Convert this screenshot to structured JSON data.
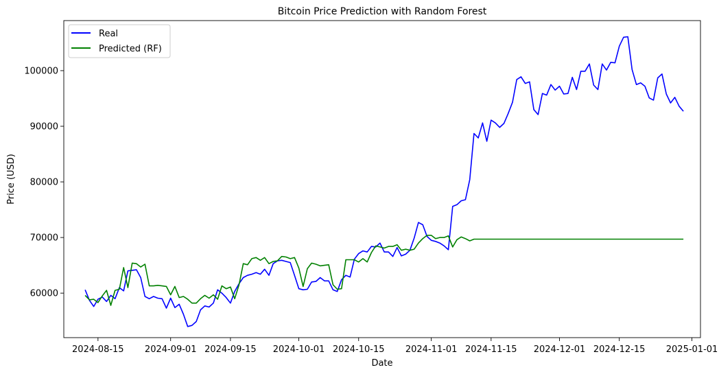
{
  "chart_data": {
    "type": "line",
    "title": "Bitcoin Price Prediction with Random Forest",
    "xlabel": "Date",
    "ylabel": "Price (USD)",
    "x_ticks": [
      "2024-08-15",
      "2024-09-01",
      "2024-09-15",
      "2024-10-01",
      "2024-10-15",
      "2024-11-01",
      "2024-11-15",
      "2024-12-01",
      "2024-12-15",
      "2025-01-01"
    ],
    "y_ticks": [
      60000,
      70000,
      80000,
      90000,
      100000
    ],
    "xlim": [
      "2024-08-07",
      "2025-01-03"
    ],
    "ylim": [
      52000,
      109000
    ],
    "legend_position": "top-left",
    "grid": false,
    "x": [
      "2024-08-12",
      "2024-08-13",
      "2024-08-14",
      "2024-08-15",
      "2024-08-16",
      "2024-08-17",
      "2024-08-18",
      "2024-08-19",
      "2024-08-20",
      "2024-08-21",
      "2024-08-22",
      "2024-08-23",
      "2024-08-24",
      "2024-08-25",
      "2024-08-26",
      "2024-08-27",
      "2024-08-28",
      "2024-08-29",
      "2024-08-30",
      "2024-08-31",
      "2024-09-01",
      "2024-09-02",
      "2024-09-03",
      "2024-09-04",
      "2024-09-05",
      "2024-09-06",
      "2024-09-07",
      "2024-09-08",
      "2024-09-09",
      "2024-09-10",
      "2024-09-11",
      "2024-09-12",
      "2024-09-13",
      "2024-09-14",
      "2024-09-15",
      "2024-09-16",
      "2024-09-17",
      "2024-09-18",
      "2024-09-19",
      "2024-09-20",
      "2024-09-21",
      "2024-09-22",
      "2024-09-23",
      "2024-09-24",
      "2024-09-25",
      "2024-09-26",
      "2024-09-27",
      "2024-09-28",
      "2024-09-29",
      "2024-09-30",
      "2024-10-01",
      "2024-10-02",
      "2024-10-03",
      "2024-10-04",
      "2024-10-05",
      "2024-10-06",
      "2024-10-07",
      "2024-10-08",
      "2024-10-09",
      "2024-10-10",
      "2024-10-11",
      "2024-10-12",
      "2024-10-13",
      "2024-10-14",
      "2024-10-15",
      "2024-10-16",
      "2024-10-17",
      "2024-10-18",
      "2024-10-19",
      "2024-10-20",
      "2024-10-21",
      "2024-10-22",
      "2024-10-23",
      "2024-10-24",
      "2024-10-25",
      "2024-10-26",
      "2024-10-27",
      "2024-10-28",
      "2024-10-29",
      "2024-10-30",
      "2024-10-31",
      "2024-11-01",
      "2024-11-02",
      "2024-11-03",
      "2024-11-04",
      "2024-11-05",
      "2024-11-06",
      "2024-11-07",
      "2024-11-08",
      "2024-11-09",
      "2024-11-10",
      "2024-11-11",
      "2024-11-12",
      "2024-11-13",
      "2024-11-14",
      "2024-11-15",
      "2024-11-16",
      "2024-11-17",
      "2024-11-18",
      "2024-11-19",
      "2024-11-20",
      "2024-11-21",
      "2024-11-22",
      "2024-11-23",
      "2024-11-24",
      "2024-11-25",
      "2024-11-26",
      "2024-11-27",
      "2024-11-28",
      "2024-11-29",
      "2024-11-30",
      "2024-12-01",
      "2024-12-02",
      "2024-12-03",
      "2024-12-04",
      "2024-12-05",
      "2024-12-06",
      "2024-12-07",
      "2024-12-08",
      "2024-12-09",
      "2024-12-10",
      "2024-12-11",
      "2024-12-12",
      "2024-12-13",
      "2024-12-14",
      "2024-12-15",
      "2024-12-16",
      "2024-12-17",
      "2024-12-18",
      "2024-12-19",
      "2024-12-20",
      "2024-12-21",
      "2024-12-22",
      "2024-12-23",
      "2024-12-24",
      "2024-12-25",
      "2024-12-26",
      "2024-12-27",
      "2024-12-28",
      "2024-12-29",
      "2024-12-30"
    ],
    "series": [
      {
        "name": "Real",
        "color": "#0000ff",
        "values": [
          60600,
          58700,
          57600,
          58900,
          59300,
          58500,
          59600,
          59000,
          61000,
          60400,
          64000,
          64100,
          64200,
          62800,
          59400,
          59000,
          59400,
          59100,
          59000,
          57300,
          59100,
          57400,
          58000,
          56200,
          54000,
          54200,
          54900,
          57000,
          57700,
          57500,
          58200,
          60600,
          60000,
          59200,
          58200,
          60300,
          61700,
          62800,
          63200,
          63400,
          63700,
          63400,
          64300,
          63200,
          65300,
          65800,
          65900,
          65700,
          65500,
          63200,
          60800,
          60600,
          60700,
          62000,
          62100,
          62800,
          62200,
          62200,
          60600,
          60300,
          62400,
          63200,
          62900,
          66100,
          67100,
          67600,
          67400,
          68400,
          68300,
          69000,
          67400,
          67400,
          66600,
          68200,
          66700,
          67000,
          67700,
          69900,
          72700,
          72300,
          70200,
          69500,
          69300,
          69000,
          68500,
          67800,
          75600,
          75900,
          76600,
          76800,
          80400,
          88700,
          87900,
          90600,
          87300,
          91100,
          90600,
          89800,
          90500,
          92300,
          94300,
          98400,
          98900,
          97700,
          98000,
          93000,
          92100,
          95900,
          95600,
          97500,
          96500,
          97200,
          95800,
          95900,
          98800,
          96600,
          99900,
          99900,
          101200,
          97400,
          96600,
          101200,
          100100,
          101500,
          101400,
          104400,
          106000,
          106100,
          100200,
          97500,
          97800,
          97200,
          95100,
          94700,
          98700,
          99400,
          95800,
          94200,
          95200,
          93600,
          92700
        ]
      },
      {
        "name": "Predicted (RF)",
        "color": "#008000",
        "values": [
          59600,
          58800,
          58900,
          58300,
          59500,
          60500,
          57800,
          60500,
          60700,
          64600,
          61000,
          65400,
          65300,
          64700,
          65200,
          61300,
          61300,
          61400,
          61300,
          61200,
          59700,
          61200,
          59200,
          59400,
          58900,
          58200,
          58200,
          59000,
          59600,
          59100,
          59700,
          58900,
          61300,
          60800,
          61100,
          59000,
          61500,
          65300,
          65100,
          66200,
          66400,
          65900,
          66400,
          65300,
          65700,
          65800,
          66600,
          66500,
          66200,
          66400,
          64500,
          61200,
          64400,
          65400,
          65200,
          64900,
          65000,
          65100,
          61500,
          60700,
          60800,
          66000,
          66000,
          66000,
          65600,
          66200,
          65600,
          67300,
          68500,
          68300,
          68100,
          68400,
          68400,
          68700,
          67700,
          67900,
          67700,
          67900,
          69000,
          69800,
          70400,
          70400,
          69800,
          70000,
          70000,
          70300,
          68300,
          69600,
          70100,
          69800,
          69400,
          69700,
          69700,
          69700,
          69700,
          69700,
          69700,
          69700,
          69700,
          69700,
          69700,
          69700,
          69700,
          69700,
          69700,
          69700,
          69700,
          69700,
          69700,
          69700,
          69700,
          69700,
          69700,
          69700,
          69700,
          69700,
          69700,
          69700,
          69700,
          69700,
          69700,
          69700,
          69700,
          69700,
          69700,
          69700,
          69700,
          69700,
          69700,
          69700,
          69700,
          69700,
          69700,
          69700,
          69700,
          69700,
          69700,
          69700,
          69700,
          69700,
          69700
        ]
      }
    ]
  }
}
